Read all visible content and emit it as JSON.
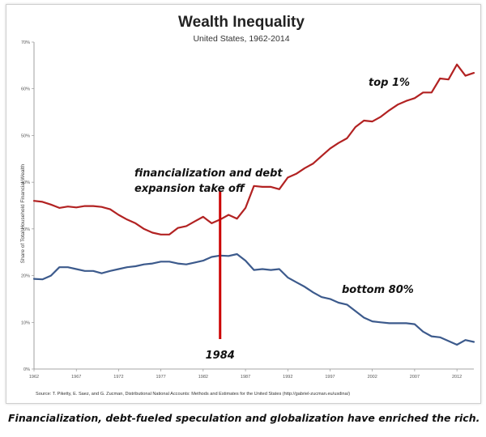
{
  "caption": "Financialization, debt-fueled speculation and globalization have enriched the rich.",
  "colors": {
    "top": "#b22222",
    "bottom": "#3c5a8c",
    "marker": "#cc0000",
    "axis": "#888888"
  },
  "chart_data": {
    "type": "line",
    "title": "Wealth Inequality",
    "subtitle": "United States, 1962-2014",
    "ylabel": "Share of Total Household Financial Wealth",
    "xlabel": "",
    "xlim": [
      1962,
      2014
    ],
    "ylim": [
      0,
      70
    ],
    "xticks": [
      1962,
      1967,
      1972,
      1977,
      1982,
      1987,
      1992,
      1997,
      2002,
      2007,
      2012
    ],
    "yticks": [
      {
        "value": 0,
        "label": "0%"
      },
      {
        "value": 10,
        "label": "10%"
      },
      {
        "value": 20,
        "label": "20%"
      },
      {
        "value": 30,
        "label": "30%"
      },
      {
        "value": 40,
        "label": "40%"
      },
      {
        "value": 50,
        "label": "50%"
      },
      {
        "value": 60,
        "label": "60%"
      },
      {
        "value": 70,
        "label": "70%"
      }
    ],
    "series": [
      {
        "name": "top 1%",
        "x": [
          1962,
          1963,
          1964,
          1965,
          1966,
          1967,
          1968,
          1969,
          1970,
          1971,
          1972,
          1973,
          1974,
          1975,
          1976,
          1977,
          1978,
          1979,
          1980,
          1981,
          1982,
          1983,
          1984,
          1985,
          1986,
          1987,
          1988,
          1989,
          1990,
          1991,
          1992,
          1993,
          1994,
          1995,
          1996,
          1997,
          1998,
          1999,
          2000,
          2001,
          2002,
          2003,
          2004,
          2005,
          2006,
          2007,
          2008,
          2009,
          2010,
          2011,
          2012,
          2013,
          2014
        ],
        "values": [
          36.0,
          35.8,
          35.2,
          34.5,
          34.8,
          34.6,
          34.9,
          34.9,
          34.7,
          34.2,
          33.0,
          32.0,
          31.2,
          30.0,
          29.2,
          28.8,
          28.8,
          30.2,
          30.6,
          31.6,
          32.6,
          31.2,
          32.0,
          33.0,
          32.2,
          34.5,
          39.2,
          39.0,
          39.0,
          38.5,
          41.0,
          41.8,
          43.0,
          44.0,
          45.6,
          47.2,
          48.4,
          49.4,
          51.8,
          53.2,
          53.0,
          54.0,
          55.4,
          56.6,
          57.4,
          58.0,
          59.2,
          59.2,
          62.2,
          62.0,
          65.2,
          62.8,
          63.4
        ]
      },
      {
        "name": "bottom 80%",
        "x": [
          1962,
          1963,
          1964,
          1965,
          1966,
          1967,
          1968,
          1969,
          1970,
          1971,
          1972,
          1973,
          1974,
          1975,
          1976,
          1977,
          1978,
          1979,
          1980,
          1981,
          1982,
          1983,
          1984,
          1985,
          1986,
          1987,
          1988,
          1989,
          1990,
          1991,
          1992,
          1993,
          1994,
          1995,
          1996,
          1997,
          1998,
          1999,
          2000,
          2001,
          2002,
          2003,
          2004,
          2005,
          2006,
          2007,
          2008,
          2009,
          2010,
          2011,
          2012,
          2013,
          2014
        ],
        "values": [
          19.3,
          19.2,
          20.0,
          21.8,
          21.8,
          21.4,
          21.0,
          21.0,
          20.5,
          21.0,
          21.4,
          21.8,
          22.0,
          22.4,
          22.6,
          23.0,
          23.0,
          22.6,
          22.4,
          22.8,
          23.2,
          24.0,
          24.3,
          24.2,
          24.6,
          23.2,
          21.2,
          21.4,
          21.2,
          21.4,
          19.6,
          18.6,
          17.6,
          16.4,
          15.4,
          15.0,
          14.2,
          13.8,
          12.4,
          11.0,
          10.2,
          10.0,
          9.8,
          9.8,
          9.8,
          9.6,
          8.0,
          7.0,
          6.8,
          6.0,
          5.2,
          6.2,
          5.8
        ]
      }
    ],
    "annotations": {
      "event_year": 1984,
      "event_label": "1984",
      "event_text_line1": "financialization and debt",
      "event_text_line2": "expansion take off",
      "top_label": "top 1%",
      "bottom_label": "bottom 80%"
    },
    "source": "Source: T. Piketty, E. Saez, and G. Zucman,  Distributional National Accounts: Methods and Estimates for the United States (http://gabriel-zucman.eu/usdina/)",
    "grid": false,
    "legend": "none"
  }
}
